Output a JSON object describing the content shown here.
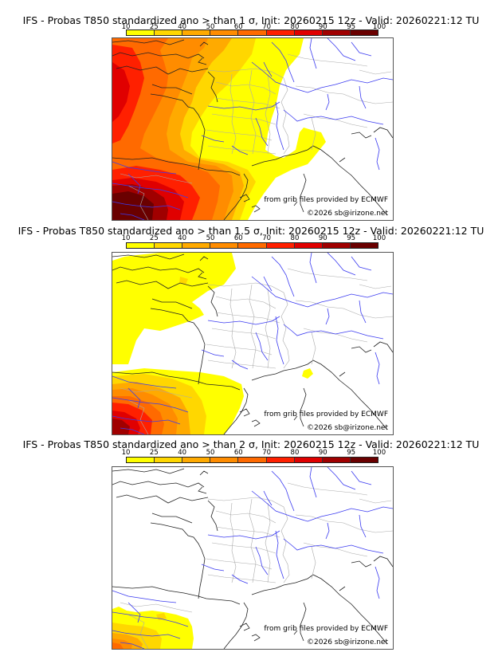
{
  "panels": [
    {
      "title": "IFS - Probas T850  standardized ano > than 1 σ, Init: 20260215 12z - Valid: 20260221:12 TU",
      "threshold_sigma": 1,
      "credit_source": "from grib files provided by ECMWF",
      "credit_copyright": "©2026 sb@irizone.net"
    },
    {
      "title": "IFS - Probas T850  standardized ano > than 1.5 σ, Init: 20260215 12z - Valid: 20260221:12 TU",
      "threshold_sigma": 1.5,
      "credit_source": "from grib files provided by ECMWF",
      "credit_copyright": "©2026 sb@irizone.net"
    },
    {
      "title": "IFS - Probas T850  standardized ano > than 2 σ, Init: 20260215 12z - Valid: 20260221:12 TU",
      "threshold_sigma": 2,
      "credit_source": "from grib files provided by ECMWF",
      "credit_copyright": "©2026 sb@irizone.net"
    }
  ],
  "colorbar": {
    "ticks": [
      "10",
      "25",
      "40",
      "50",
      "60",
      "70",
      "80",
      "90",
      "95",
      "100"
    ],
    "colors": [
      "#ffff00",
      "#ffd700",
      "#ffaa00",
      "#ff8c00",
      "#ff6a00",
      "#ff2000",
      "#e00000",
      "#a00000",
      "#6a0000"
    ]
  },
  "map_colors": {
    "land_border": "#aaaaaa",
    "coast": "#222222",
    "river": "#3333ee"
  }
}
